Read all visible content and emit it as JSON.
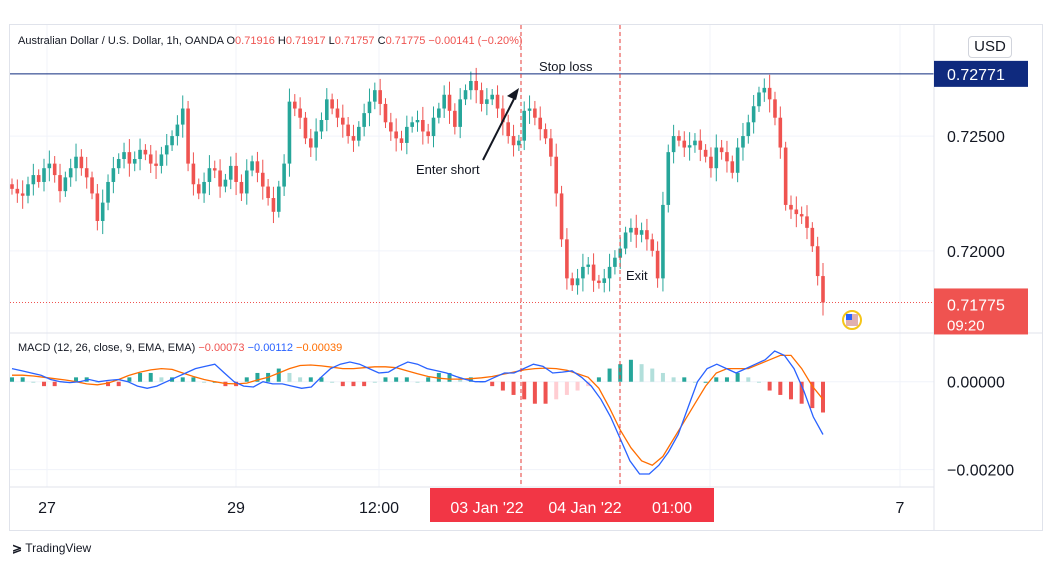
{
  "header": {
    "symbol": "Australian Dollar / U.S. Dollar, 1h, OANDA",
    "o_label": "O",
    "o_value": "0.71916",
    "h_label": "H",
    "h_value": "0.71917",
    "l_label": "L",
    "l_value": "0.71757",
    "c_label": "C",
    "c_value": "0.71775",
    "change": "−0.00141 (−0.20%)",
    "currency_button": "USD"
  },
  "macd_legend": {
    "title": "MACD (12, 26, close, 9, EMA, EMA)",
    "hist_value": "−0.00073",
    "macd_value": "−0.00112",
    "signal_value": "−0.00039"
  },
  "annotations": {
    "stop_loss": "Stop loss",
    "enter_short": "Enter short",
    "exit": "Exit"
  },
  "price_axis": {
    "ticks": [
      "0.72500",
      "0.72000"
    ],
    "stop_level_label": "0.72771",
    "last_price_label": "0.71775",
    "countdown": "09:20"
  },
  "macd_axis": {
    "ticks": [
      "0.00000",
      "−0.00200"
    ]
  },
  "time_axis": {
    "labels": [
      "27",
      "29",
      "12:00",
      "7"
    ],
    "highlight_labels": [
      "03 Jan '22",
      "04 Jan '22",
      "01:00"
    ]
  },
  "brand": {
    "name": "TradingView"
  },
  "colors": {
    "up": "#26a69a",
    "down": "#ef5350",
    "macd_line": "#2962ff",
    "signal_line": "#ff6d00",
    "stop_level": "#0f2a7e"
  },
  "chart_data": {
    "type": "candlestick",
    "title": "Australian Dollar / U.S. Dollar, 1h, OANDA",
    "price_range": [
      0.71655,
      0.72875
    ],
    "stop_loss_level": 0.72771,
    "last_price": 0.71775,
    "closes": [
      0.7227,
      0.7225,
      0.7224,
      0.7229,
      0.7233,
      0.723,
      0.7236,
      0.7238,
      0.7233,
      0.7226,
      0.7232,
      0.7236,
      0.7241,
      0.7236,
      0.7232,
      0.7225,
      0.7213,
      0.7221,
      0.723,
      0.7236,
      0.724,
      0.7243,
      0.7238,
      0.724,
      0.7244,
      0.7242,
      0.7238,
      0.7237,
      0.7242,
      0.7246,
      0.725,
      0.7255,
      0.7262,
      0.7238,
      0.7229,
      0.7225,
      0.723,
      0.7236,
      0.7235,
      0.7228,
      0.7231,
      0.7237,
      0.723,
      0.7225,
      0.7235,
      0.7239,
      0.7234,
      0.7228,
      0.7223,
      0.7217,
      0.7228,
      0.7238,
      0.7265,
      0.7262,
      0.7258,
      0.7249,
      0.7245,
      0.7252,
      0.7257,
      0.7266,
      0.7262,
      0.7258,
      0.7255,
      0.725,
      0.7248,
      0.7254,
      0.726,
      0.7265,
      0.727,
      0.7264,
      0.7256,
      0.7252,
      0.7249,
      0.7247,
      0.7254,
      0.7256,
      0.7257,
      0.7252,
      0.725,
      0.7258,
      0.7262,
      0.7268,
      0.7261,
      0.7254,
      0.7266,
      0.727,
      0.7274,
      0.727,
      0.7264,
      0.7266,
      0.7268,
      0.7262,
      0.7256,
      0.725,
      0.7246,
      0.7248,
      0.7261,
      0.7262,
      0.7258,
      0.7253,
      0.7249,
      0.7241,
      0.7225,
      0.7205,
      0.7188,
      0.7185,
      0.7188,
      0.7193,
      0.7194,
      0.7187,
      0.7186,
      0.7188,
      0.7193,
      0.7197,
      0.7201,
      0.7208,
      0.721,
      0.7207,
      0.7209,
      0.7205,
      0.72,
      0.7188,
      0.722,
      0.7243,
      0.725,
      0.7248,
      0.7245,
      0.7246,
      0.7248,
      0.7244,
      0.7241,
      0.7236,
      0.7245,
      0.7243,
      0.7239,
      0.7234,
      0.7245,
      0.725,
      0.7256,
      0.7263,
      0.7269,
      0.7271,
      0.7266,
      0.7258,
      0.7245,
      0.722,
      0.7218,
      0.7216,
      0.7215,
      0.721,
      0.7202,
      0.7189,
      0.71775
    ],
    "macd": {
      "range": [
        -0.00235,
        0.00095
      ],
      "macd_line": [
        0.0003,
        0.00025,
        0.0002,
        0.00015,
        5e-05,
        0.0,
        -2e-05,
        0.0,
        5e-05,
        0.0,
        3e-05,
        5e-05,
        0.0,
        -0.0001,
        -0.00015,
        -0.0001,
        0.0,
        0.0001,
        0.0002,
        0.0003,
        0.00035,
        0.0004,
        0.0002,
        0.0,
        -0.0001,
        -0.00012,
        0.0,
        -5e-05,
        -5e-05,
        -0.0001,
        -0.00015,
        -0.00012,
        0.0001,
        0.0003,
        0.0004,
        0.00045,
        0.0004,
        0.0003,
        0.0002,
        0.00022,
        0.00035,
        0.00045,
        0.0004,
        0.0003,
        0.00025,
        0.0002,
        0.00012,
        5e-05,
        0.0,
        0.0,
        0.0001,
        0.0002,
        0.0002,
        0.0003,
        0.0004,
        0.00035,
        0.0002,
        0.00022,
        0.00025,
        0.0001,
        -0.0001,
        -0.0004,
        -0.0008,
        -0.0013,
        -0.0018,
        -0.0021,
        -0.0021,
        -0.0019,
        -0.0016,
        -0.0012,
        -0.0006,
        0.0,
        0.0003,
        0.0004,
        0.0003,
        0.0002,
        0.0003,
        0.0004,
        0.0005,
        0.0007,
        0.0006,
        0.0003,
        -0.0002,
        -0.0008,
        -0.0012
      ],
      "signal_line": [
        0.00015,
        0.00015,
        0.00013,
        0.0001,
        7e-05,
        4e-05,
        0.0,
        -5e-05,
        -7e-05,
        -3e-05,
        5e-05,
        0.00015,
        0.00022,
        0.00027,
        0.0003,
        0.00028,
        0.0002,
        0.00012,
        5e-05,
        0.0,
        -4e-05,
        -5e-05,
        -3e-05,
        4e-05,
        0.0001,
        0.0002,
        0.0003,
        0.00037,
        0.00038,
        0.00036,
        0.00033,
        0.0003,
        0.0003,
        0.00032,
        0.00034,
        0.00034,
        0.00032,
        0.00025,
        0.00018,
        0.00012,
        8e-05,
        6e-05,
        6e-05,
        7e-05,
        9e-05,
        0.00012,
        0.00017,
        0.00022,
        0.00027,
        0.0003,
        0.00031,
        0.0003,
        0.00026,
        0.00018,
        0.0001,
        -0.00015,
        -0.0006,
        -0.0011,
        -0.0015,
        -0.0018,
        -0.0019,
        -0.0017,
        -0.0013,
        -0.0009,
        -0.0005,
        -0.0001,
        0.0002,
        0.0003,
        0.0003,
        0.0003,
        0.0004,
        0.0005,
        0.0006,
        0.0006,
        0.0003,
        -0.0001,
        -0.0004
      ],
      "histogram": [
        0.0001,
        0.0001,
        0.0,
        -0.0001,
        -0.0001,
        0.0,
        0.0001,
        0.0001,
        0.0,
        -0.0001,
        -0.0001,
        0.0001,
        0.0002,
        0.0002,
        0.0001,
        0.0001,
        0.0001,
        0.0001,
        0.0,
        0.0,
        -0.0001,
        -0.0001,
        0.0001,
        0.0002,
        0.0002,
        0.0003,
        0.0002,
        0.0001,
        0.0001,
        0.0001,
        0.0,
        -0.0001,
        -0.0001,
        -0.0001,
        0.0,
        0.0001,
        0.0001,
        0.0001,
        0.0,
        0.0001,
        0.0002,
        0.0002,
        0.0001,
        0.0001,
        0.0,
        -0.0001,
        -0.0002,
        -0.0003,
        -0.0004,
        -0.0005,
        -0.0005,
        -0.0004,
        -0.0003,
        -0.0002,
        -0.0001,
        0.0001,
        0.0003,
        0.0004,
        0.0005,
        0.0004,
        0.0003,
        0.0002,
        0.0001,
        0.0001,
        0.0,
        0.0,
        0.0001,
        0.0001,
        0.0002,
        0.0001,
        0.0,
        -0.0002,
        -0.0003,
        -0.0004,
        -0.0005,
        -0.0006,
        -0.0007
      ]
    }
  }
}
